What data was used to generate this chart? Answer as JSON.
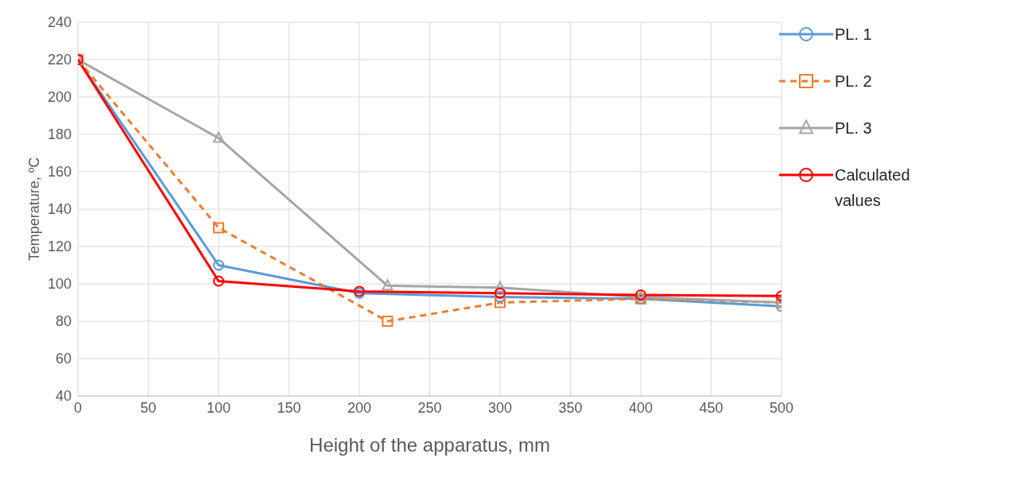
{
  "chart_data": {
    "type": "line",
    "xlabel": "Height of the apparatus, mm",
    "ylabel": "Temperature, ºC",
    "xlim": [
      0,
      500
    ],
    "xticks": [
      0,
      50,
      100,
      150,
      200,
      250,
      300,
      350,
      400,
      450,
      500
    ],
    "ylim": [
      40,
      240
    ],
    "yticks": [
      40,
      60,
      80,
      100,
      120,
      140,
      160,
      180,
      200,
      220,
      240
    ],
    "grid": true,
    "legend": "top right",
    "series": [
      {
        "name": "PL. 1",
        "color": "#5b9bd5",
        "marker": "circle",
        "line_style": "solid",
        "x": [
          0,
          100,
          200,
          300,
          400,
          500
        ],
        "values": [
          220,
          110,
          95,
          93,
          92,
          88
        ]
      },
      {
        "name": "PL. 2",
        "color": "#ed7d31",
        "marker": "square",
        "line_style": "dashed",
        "x": [
          0,
          100,
          220,
          300,
          400,
          500
        ],
        "values": [
          220,
          130,
          80,
          90,
          92,
          90
        ]
      },
      {
        "name": "PL. 3",
        "color": "#a5a5a5",
        "marker": "triangle",
        "line_style": "solid",
        "x": [
          0,
          100,
          220,
          300,
          400,
          500
        ],
        "values": [
          220,
          178,
          99,
          98,
          93,
          90
        ]
      },
      {
        "name": "Calculated values",
        "color": "#ff0000",
        "marker": "circle",
        "line_style": "solid",
        "x": [
          0,
          100,
          200,
          300,
          400,
          500
        ],
        "values": [
          220,
          101.5,
          96,
          95,
          94,
          93.5
        ]
      }
    ]
  }
}
